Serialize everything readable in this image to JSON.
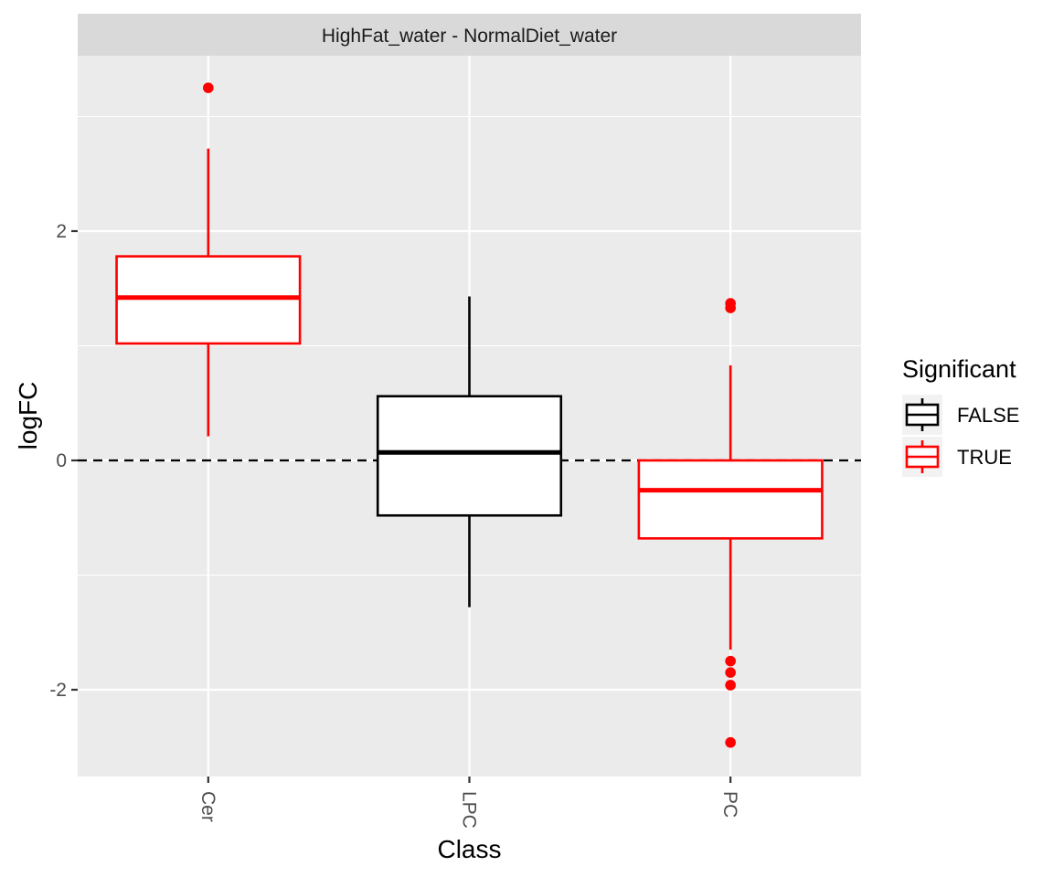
{
  "chart_data": {
    "type": "boxplot",
    "facet_title": "HighFat_water - NormalDiet_water",
    "xlabel": "Class",
    "ylabel": "logFC",
    "categories": [
      "Cer",
      "LPC",
      "PC"
    ],
    "ylim": [
      -2.75,
      3.55
    ],
    "y_ticks": [
      -2,
      0,
      2
    ],
    "y_tick_labels": [
      "-2",
      "0",
      "2"
    ],
    "reference_line": {
      "y": 0,
      "style": "dashed"
    },
    "grid": true,
    "legend": {
      "title": "Significant",
      "position": "right",
      "entries": [
        {
          "label": "FALSE",
          "color": "#000000"
        },
        {
          "label": "TRUE",
          "color": "#ff0000"
        }
      ]
    },
    "boxes": [
      {
        "category": "Cer",
        "significant": "TRUE",
        "min": 0.21,
        "q1": 1.02,
        "median": 1.42,
        "q3": 1.78,
        "max": 2.72,
        "outliers": [
          3.25
        ]
      },
      {
        "category": "LPC",
        "significant": "FALSE",
        "min": -1.28,
        "q1": -0.48,
        "median": 0.07,
        "q3": 0.56,
        "max": 1.43,
        "outliers": []
      },
      {
        "category": "PC",
        "significant": "TRUE",
        "min": -1.65,
        "q1": -0.68,
        "median": -0.26,
        "q3": 0.0,
        "max": 0.83,
        "outliers": [
          1.37,
          1.33,
          -1.75,
          -1.85,
          -1.96,
          -2.46
        ]
      }
    ]
  }
}
